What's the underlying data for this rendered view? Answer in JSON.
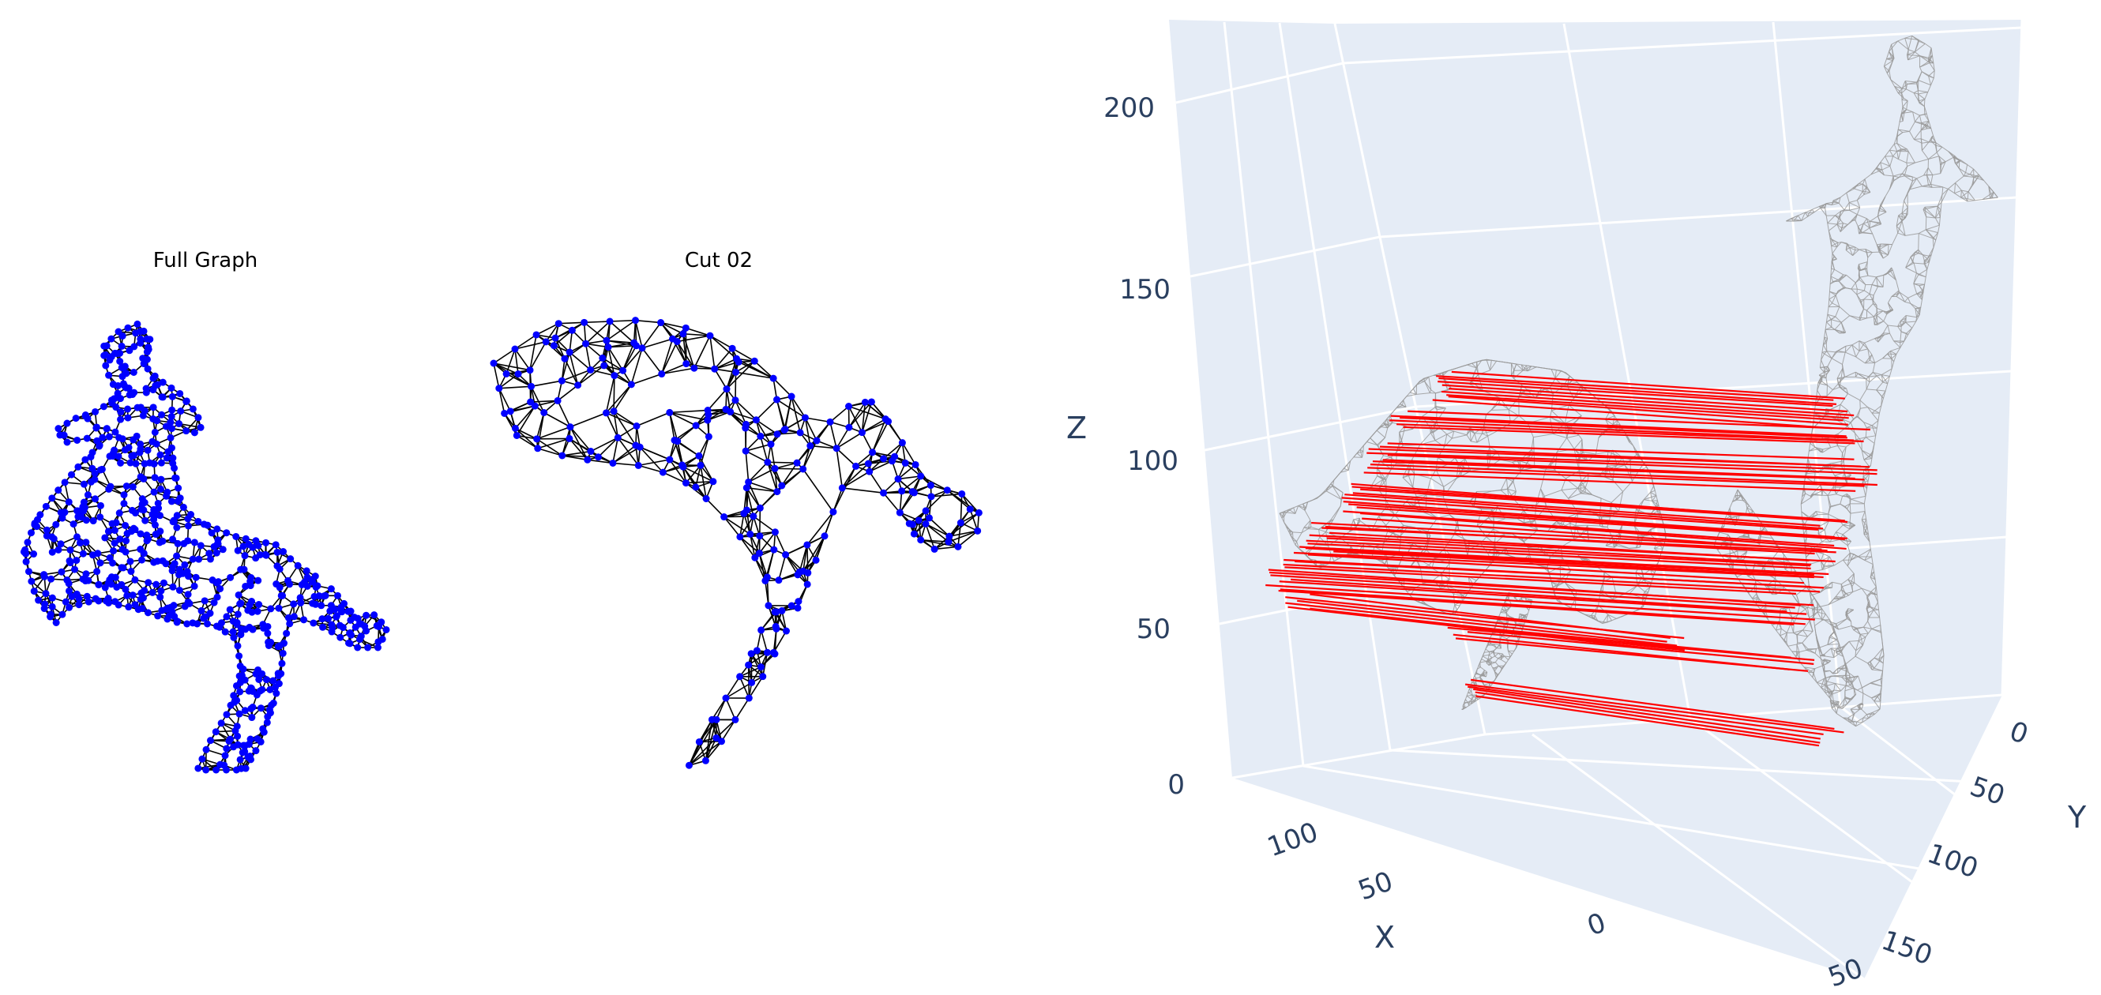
{
  "panels": [
    {
      "title": "Full Graph"
    },
    {
      "title": "Cut 02"
    }
  ],
  "scene3d": {
    "x_axis": {
      "title": "X",
      "ticks": [
        "100",
        "50",
        "0",
        "50"
      ]
    },
    "y_axis": {
      "title": "Y",
      "ticks": [
        "0",
        "50",
        "100",
        "150"
      ]
    },
    "z_axis": {
      "title": "Z",
      "ticks": [
        "0",
        "50",
        "100",
        "150",
        "200"
      ]
    },
    "colors": {
      "pane": "#e5ecf6",
      "grid": "#ffffff",
      "mesh": "#9a9a9a",
      "correspondence": "#ff0000",
      "graph_nodes": "#0000ff",
      "graph_edges": "#000000"
    }
  }
}
